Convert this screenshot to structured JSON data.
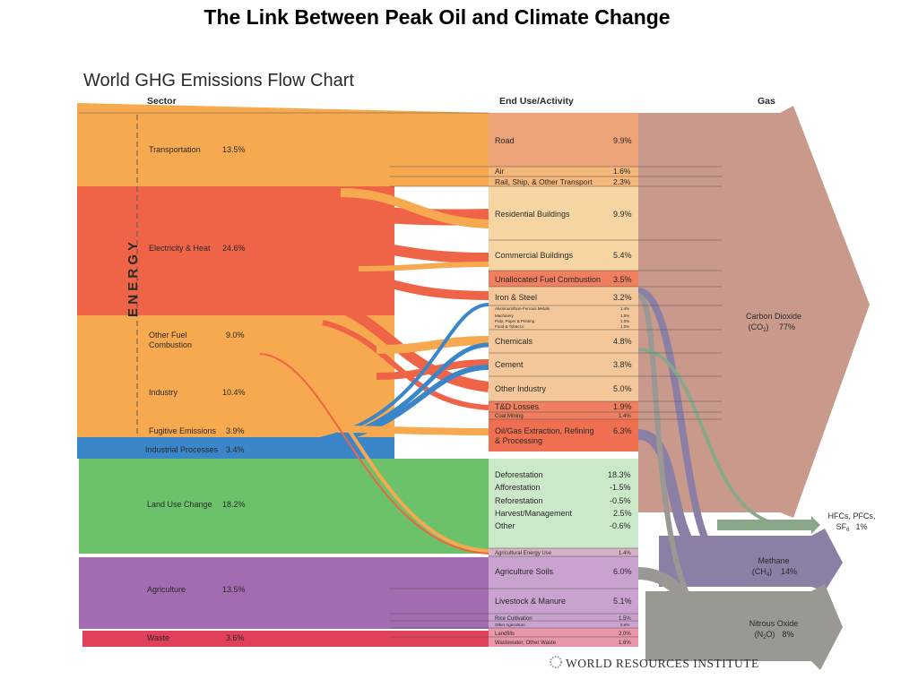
{
  "slide_title": "The Link Between Peak Oil and Climate Change",
  "chart_title": "World GHG Emissions Flow Chart",
  "headers": {
    "sector": "Sector",
    "end_use": "End Use/Activity",
    "gas": "Gas"
  },
  "energy_label": "E N E R G Y",
  "colors": {
    "transportation": "#f7a94f",
    "electricity": "#ef6446",
    "other_fuel": "#f7a94f",
    "industrial_processes": "#3b86c9",
    "land_use": "#6cc26a",
    "agriculture": "#a36bb0",
    "waste": "#e0405a",
    "gas_co2": "#c9998c",
    "gas_ch4": "#8c7fa6",
    "gas_n2o": "#9b9792"
  },
  "sectors": [
    {
      "name": "Transportation",
      "pct": "13.5%"
    },
    {
      "name": "Electricity & Heat",
      "pct": "24.6%"
    },
    {
      "name": "Other Fuel Combustion",
      "pct": "9.0%"
    },
    {
      "name": "Industry",
      "pct": "10.4%"
    },
    {
      "name": "Fugitive Emissions",
      "pct": "3.9%"
    },
    {
      "name": "Industrial Processes",
      "pct": "3.4%"
    },
    {
      "name": "Land Use Change",
      "pct": "18.2%"
    },
    {
      "name": "Agriculture",
      "pct": "13.5%"
    },
    {
      "name": "Waste",
      "pct": "3.6%"
    }
  ],
  "end_uses": [
    {
      "name": "Road",
      "pct": "9.9%"
    },
    {
      "name": "Air",
      "pct": "1.6%"
    },
    {
      "name": "Rail, Ship, & Other Transport",
      "pct": "2.3%"
    },
    {
      "name": "Residential Buildings",
      "pct": "9.9%"
    },
    {
      "name": "Commercial Buildings",
      "pct": "5.4%"
    },
    {
      "name": "Unallocated Fuel Combustion",
      "pct": "3.5%"
    },
    {
      "name": "Iron & Steel",
      "pct": "3.2%"
    },
    {
      "name": "Aluminum/Non-Ferrous Metals",
      "pct": "1.4%"
    },
    {
      "name": "Machinery",
      "pct": "1.0%"
    },
    {
      "name": "Pulp, Paper & Printing",
      "pct": "1.0%"
    },
    {
      "name": "Food & Tobacco",
      "pct": "1.0%"
    },
    {
      "name": "Chemicals",
      "pct": "4.8%"
    },
    {
      "name": "Cement",
      "pct": "3.8%"
    },
    {
      "name": "Other Industry",
      "pct": "5.0%"
    },
    {
      "name": "T&D Losses",
      "pct": "1.9%"
    },
    {
      "name": "Coal Mining",
      "pct": "1.4%"
    },
    {
      "name": "Oil/Gas Extraction, Refining & Processing",
      "pct": "6.3%"
    },
    {
      "name": "Deforestation",
      "pct": "18.3%"
    },
    {
      "name": "Afforestation",
      "pct": "-1.5%"
    },
    {
      "name": "Reforestation",
      "pct": "-0.5%"
    },
    {
      "name": "Harvest/Management",
      "pct": "2.5%"
    },
    {
      "name": "Other",
      "pct": "-0.6%"
    },
    {
      "name": "Agricultural Energy Use",
      "pct": "1.4%"
    },
    {
      "name": "Agriculture Soils",
      "pct": "6.0%"
    },
    {
      "name": "Livestock & Manure",
      "pct": "5.1%"
    },
    {
      "name": "Rice Cultivation",
      "pct": "1.5%"
    },
    {
      "name": "Other Agriculture",
      "pct": "0.9%"
    },
    {
      "name": "Landfills",
      "pct": "2.0%"
    },
    {
      "name": "Wastewater, Other Waste",
      "pct": "1.6%"
    }
  ],
  "gases": [
    {
      "name": "Carbon Dioxide",
      "formula": "(CO",
      "sub": "2",
      "tail": ")",
      "pct": "77%"
    },
    {
      "name": "HFCs, PFCs,",
      "formula": "SF",
      "sub": "6",
      "tail": "",
      "pct": "1%"
    },
    {
      "name": "Methane",
      "formula": "(CH",
      "sub": "4",
      "tail": ")",
      "pct": "14%"
    },
    {
      "name": "Nitrous Oxide",
      "formula": "(N",
      "sub": "2",
      "tail": "O)",
      "pct": "8%"
    }
  ],
  "footer": "WORLD RESOURCES INSTITUTE"
}
